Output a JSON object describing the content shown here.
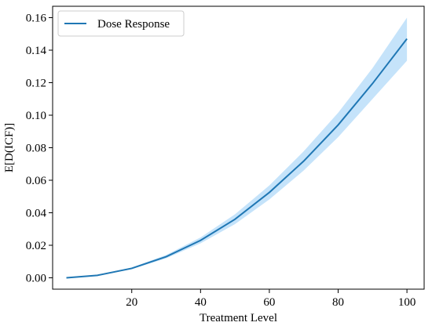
{
  "chart_data": {
    "type": "line",
    "title": "",
    "xlabel": "Treatment Level",
    "ylabel": "E[D(ICF)]",
    "xlim": [
      -3,
      105
    ],
    "ylim": [
      -0.007,
      0.167
    ],
    "x_ticks": [
      20,
      40,
      60,
      80,
      100
    ],
    "y_ticks": [
      0.0,
      0.02,
      0.04,
      0.06,
      0.08,
      0.1,
      0.12,
      0.14,
      0.16
    ],
    "y_tick_labels": [
      "0.00",
      "0.02",
      "0.04",
      "0.06",
      "0.08",
      "0.10",
      "0.12",
      "0.14",
      "0.16"
    ],
    "x_tick_labels": [
      "20",
      "40",
      "60",
      "80",
      "100"
    ],
    "grid": false,
    "legend_position": "top-left",
    "series": [
      {
        "name": "Dose Response",
        "color": "#1f77b4",
        "band_color": "#9fd1f7",
        "x": [
          1,
          10,
          20,
          30,
          40,
          50,
          60,
          70,
          80,
          90,
          100
        ],
        "y": [
          0.0,
          0.0015,
          0.0058,
          0.013,
          0.023,
          0.036,
          0.0525,
          0.0718,
          0.094,
          0.1195,
          0.147
        ],
        "lower": [
          0.0,
          0.0013,
          0.0053,
          0.012,
          0.0212,
          0.033,
          0.0482,
          0.066,
          0.0865,
          0.11,
          0.1335
        ],
        "upper": [
          0.0,
          0.0017,
          0.0063,
          0.014,
          0.0248,
          0.039,
          0.0568,
          0.0778,
          0.1015,
          0.129,
          0.16
        ]
      }
    ]
  }
}
